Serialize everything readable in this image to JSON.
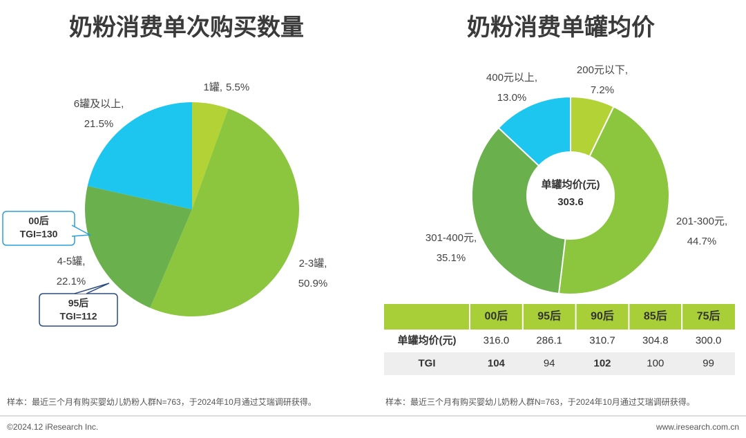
{
  "chart_data": [
    {
      "type": "pie",
      "title": "奶粉消费单次购买数量",
      "categories": [
        "1罐,",
        "2-3罐,",
        "4-5罐,",
        "6罐及以上,"
      ],
      "values": [
        5.5,
        50.9,
        22.1,
        21.5
      ],
      "value_labels": [
        "5.5%",
        "50.9%",
        "22.1%",
        "21.5%"
      ],
      "colors": [
        "#b3d235",
        "#8cc63f",
        "#6ab04c",
        "#1dc6ef"
      ],
      "annotations": [
        {
          "title": "00后",
          "text": "TGI=130",
          "color": "#2a9fd8"
        },
        {
          "title": "95后",
          "text": "TGI=112",
          "color": "#2b4a7e"
        }
      ]
    },
    {
      "type": "donut",
      "title": "奶粉消费单罐均价",
      "categories": [
        "200元以下,",
        "201-300元,",
        "301-400元,",
        "400元以上,"
      ],
      "values": [
        7.2,
        44.7,
        35.1,
        13.0
      ],
      "value_labels": [
        "7.2%",
        "44.7%",
        "35.1%",
        "13.0%"
      ],
      "colors": [
        "#b3d235",
        "#8cc63f",
        "#6ab04c",
        "#1dc6ef"
      ],
      "center_label": "单罐均价(元)",
      "center_value": 303.6
    }
  ],
  "table": {
    "columns": [
      "00后",
      "95后",
      "90后",
      "85后",
      "75后"
    ],
    "rows": [
      {
        "label": "单罐均价(元)",
        "cells": [
          "316.0",
          "286.1",
          "310.7",
          "304.8",
          "300.0"
        ]
      },
      {
        "label": "TGI",
        "cells": [
          "104",
          "94",
          "102",
          "100",
          "99"
        ],
        "highlight": [
          0,
          2
        ],
        "highlight_color": "#e8141a"
      }
    ]
  },
  "notes": [
    "样本：最近三个月有购买婴幼儿奶粉人群N=763，于2024年10月通过艾瑞调研获得。",
    "样本：最近三个月有购买婴幼儿奶粉人群N=763，于2024年10月通过艾瑞调研获得。"
  ],
  "footer": {
    "left": "©2024.12 iResearch Inc.",
    "right": "www.iresearch.com.cn"
  }
}
